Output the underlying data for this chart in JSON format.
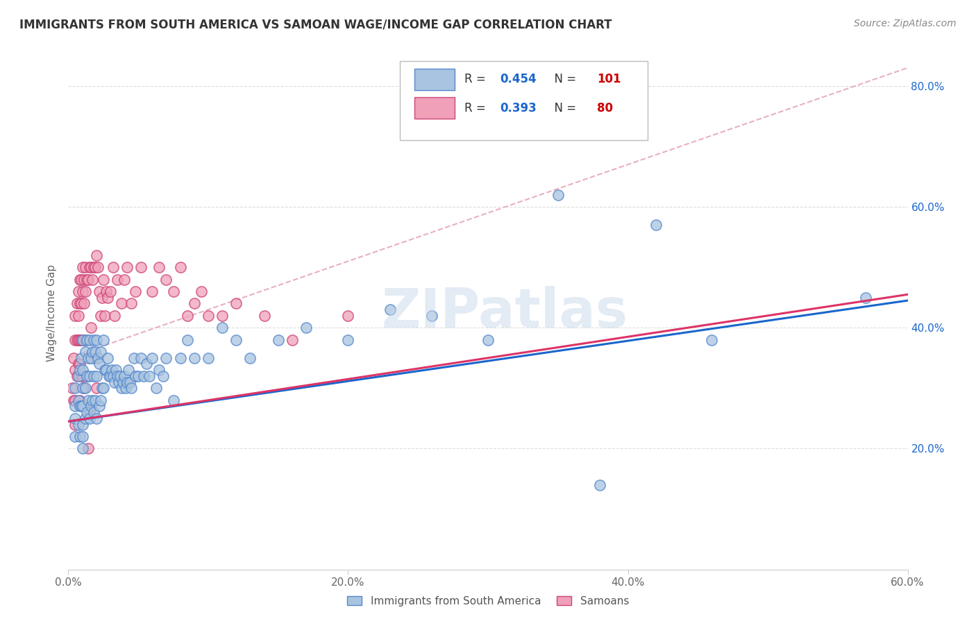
{
  "title": "IMMIGRANTS FROM SOUTH AMERICA VS SAMOAN WAGE/INCOME GAP CORRELATION CHART",
  "source": "Source: ZipAtlas.com",
  "ylabel": "Wage/Income Gap",
  "xlim": [
    0.0,
    0.6
  ],
  "ylim": [
    0.0,
    0.85
  ],
  "xtick_vals": [
    0.0,
    0.2,
    0.4,
    0.6
  ],
  "ytick_vals": [
    0.2,
    0.4,
    0.6,
    0.8
  ],
  "blue_R": 0.454,
  "blue_N": 101,
  "pink_R": 0.393,
  "pink_N": 80,
  "blue_color": "#a8c4e0",
  "blue_line_color": "#1a66cc",
  "blue_edge_color": "#5588cc",
  "pink_color": "#f0a0b8",
  "pink_line_color": "#dd3366",
  "pink_edge_color": "#cc4477",
  "dashed_line_color": "#e8b0c0",
  "watermark": "ZIPatlas",
  "legend_R_color": "#1a66cc",
  "legend_N_color": "#cc0000",
  "grid_color": "#dddddd",
  "blue_line_start_y": 0.245,
  "blue_line_end_y": 0.445,
  "pink_line_start_y": 0.245,
  "pink_line_end_y": 0.455,
  "blue_scatter_x": [
    0.005,
    0.005,
    0.005,
    0.005,
    0.007,
    0.007,
    0.007,
    0.008,
    0.008,
    0.008,
    0.009,
    0.009,
    0.01,
    0.01,
    0.01,
    0.01,
    0.01,
    0.01,
    0.01,
    0.012,
    0.012,
    0.012,
    0.013,
    0.013,
    0.013,
    0.014,
    0.014,
    0.015,
    0.015,
    0.015,
    0.016,
    0.016,
    0.017,
    0.017,
    0.018,
    0.018,
    0.018,
    0.019,
    0.019,
    0.02,
    0.02,
    0.02,
    0.021,
    0.022,
    0.022,
    0.023,
    0.023,
    0.024,
    0.025,
    0.025,
    0.026,
    0.027,
    0.028,
    0.029,
    0.03,
    0.031,
    0.032,
    0.033,
    0.034,
    0.035,
    0.036,
    0.037,
    0.038,
    0.039,
    0.04,
    0.041,
    0.042,
    0.043,
    0.044,
    0.045,
    0.047,
    0.048,
    0.05,
    0.052,
    0.054,
    0.056,
    0.058,
    0.06,
    0.063,
    0.065,
    0.068,
    0.07,
    0.075,
    0.08,
    0.085,
    0.09,
    0.1,
    0.11,
    0.12,
    0.13,
    0.15,
    0.17,
    0.2,
    0.23,
    0.26,
    0.3,
    0.35,
    0.38,
    0.42,
    0.46,
    0.57
  ],
  "blue_scatter_y": [
    0.3,
    0.27,
    0.25,
    0.22,
    0.32,
    0.28,
    0.24,
    0.33,
    0.27,
    0.22,
    0.35,
    0.27,
    0.38,
    0.33,
    0.3,
    0.27,
    0.24,
    0.22,
    0.2,
    0.36,
    0.3,
    0.25,
    0.38,
    0.32,
    0.26,
    0.35,
    0.28,
    0.38,
    0.32,
    0.25,
    0.35,
    0.27,
    0.36,
    0.28,
    0.38,
    0.32,
    0.26,
    0.36,
    0.28,
    0.38,
    0.32,
    0.25,
    0.35,
    0.34,
    0.27,
    0.36,
    0.28,
    0.3,
    0.38,
    0.3,
    0.33,
    0.33,
    0.35,
    0.32,
    0.32,
    0.33,
    0.32,
    0.31,
    0.33,
    0.32,
    0.31,
    0.32,
    0.3,
    0.31,
    0.32,
    0.3,
    0.31,
    0.33,
    0.31,
    0.3,
    0.35,
    0.32,
    0.32,
    0.35,
    0.32,
    0.34,
    0.32,
    0.35,
    0.3,
    0.33,
    0.32,
    0.35,
    0.28,
    0.35,
    0.38,
    0.35,
    0.35,
    0.4,
    0.38,
    0.35,
    0.38,
    0.4,
    0.38,
    0.43,
    0.42,
    0.38,
    0.62,
    0.14,
    0.57,
    0.38,
    0.45
  ],
  "pink_scatter_x": [
    0.003,
    0.004,
    0.004,
    0.005,
    0.005,
    0.005,
    0.005,
    0.005,
    0.006,
    0.006,
    0.006,
    0.007,
    0.007,
    0.007,
    0.007,
    0.008,
    0.008,
    0.008,
    0.008,
    0.008,
    0.009,
    0.009,
    0.009,
    0.009,
    0.01,
    0.01,
    0.01,
    0.01,
    0.011,
    0.011,
    0.011,
    0.012,
    0.012,
    0.012,
    0.013,
    0.013,
    0.014,
    0.014,
    0.015,
    0.015,
    0.016,
    0.016,
    0.017,
    0.018,
    0.018,
    0.019,
    0.02,
    0.02,
    0.021,
    0.022,
    0.023,
    0.024,
    0.025,
    0.026,
    0.027,
    0.028,
    0.03,
    0.032,
    0.033,
    0.035,
    0.038,
    0.04,
    0.042,
    0.045,
    0.048,
    0.052,
    0.06,
    0.065,
    0.07,
    0.075,
    0.08,
    0.085,
    0.09,
    0.095,
    0.1,
    0.11,
    0.12,
    0.14,
    0.16,
    0.2
  ],
  "pink_scatter_y": [
    0.3,
    0.35,
    0.28,
    0.42,
    0.38,
    0.33,
    0.28,
    0.24,
    0.44,
    0.38,
    0.32,
    0.46,
    0.42,
    0.38,
    0.34,
    0.48,
    0.44,
    0.38,
    0.34,
    0.28,
    0.48,
    0.44,
    0.38,
    0.32,
    0.5,
    0.46,
    0.38,
    0.32,
    0.48,
    0.44,
    0.3,
    0.5,
    0.46,
    0.38,
    0.48,
    0.32,
    0.48,
    0.2,
    0.5,
    0.26,
    0.5,
    0.4,
    0.48,
    0.5,
    0.35,
    0.5,
    0.52,
    0.3,
    0.5,
    0.46,
    0.42,
    0.45,
    0.48,
    0.42,
    0.46,
    0.45,
    0.46,
    0.5,
    0.42,
    0.48,
    0.44,
    0.48,
    0.5,
    0.44,
    0.46,
    0.5,
    0.46,
    0.5,
    0.48,
    0.46,
    0.5,
    0.42,
    0.44,
    0.46,
    0.42,
    0.42,
    0.44,
    0.42,
    0.38,
    0.42
  ]
}
